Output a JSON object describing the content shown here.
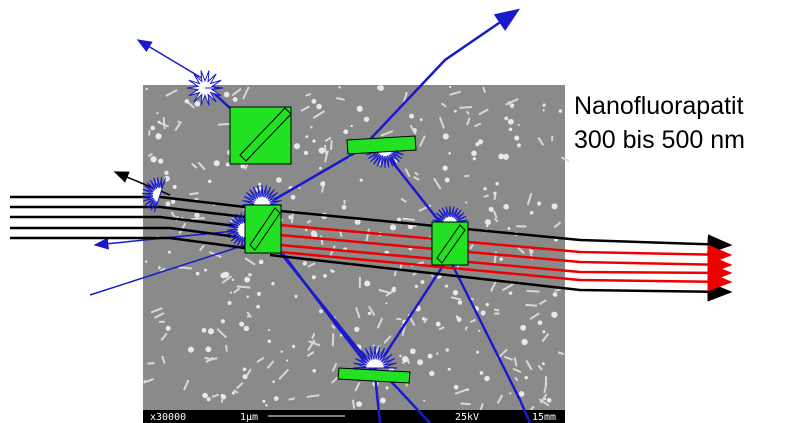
{
  "label": {
    "line1": "Nanofluorapatit",
    "line2": "300 bis 500 nm"
  },
  "micrograph": {
    "magnification": "x30000",
    "scale": "1µm",
    "voltage": "25kV",
    "distance": "15mm"
  }
}
